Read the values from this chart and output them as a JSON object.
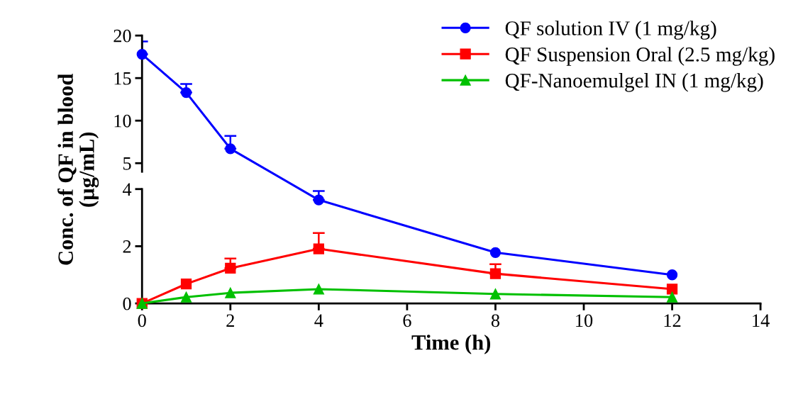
{
  "chart_data": [
    {
      "type": "line",
      "x": [
        0,
        1,
        2
      ],
      "xlim": [
        0,
        14
      ],
      "xticks": [
        0,
        2,
        4,
        6,
        8,
        10,
        12,
        14
      ],
      "ylim": [
        4,
        20
      ],
      "yticks": [
        5,
        10,
        15,
        20
      ],
      "tick_labels": "y",
      "legend": "top right",
      "series": [
        {
          "name": "QF solution IV (1 mg/kg)",
          "color": "#0000ff",
          "marker": "circle",
          "values": [
            17.8,
            13.3,
            6.7
          ],
          "errors": [
            [
              17.8,
              19.3
            ],
            [
              13.3,
              14.3
            ],
            [
              6.7,
              8.2
            ]
          ]
        }
      ]
    },
    {
      "type": "line",
      "x": [
        0,
        1,
        2,
        4,
        8,
        12
      ],
      "xlim": [
        0,
        14
      ],
      "xticks": [
        0,
        2,
        4,
        6,
        8,
        10,
        12,
        14
      ],
      "ylim": [
        0,
        4
      ],
      "yticks": [
        0,
        2,
        4
      ],
      "xlabel": "Time (h)",
      "legend": "top right",
      "ylabel": "Conc. of QF in blood\n(µg/mL)",
      "series": [
        {
          "color": "#0000ff",
          "marker": "circle",
          "x": [
            4,
            8,
            12
          ],
          "values": [
            3.62,
            1.78,
            1.0
          ],
          "errors": [
            [
              3.62,
              3.93
            ],
            null,
            null
          ]
        },
        {
          "name": "QF Suspension Oral (2.5 mg/kg)",
          "color": "#ff0000",
          "marker": "square",
          "values": [
            0.0,
            0.68,
            1.23,
            1.91,
            1.04,
            0.5
          ],
          "errors": [
            null,
            null,
            [
              1.23,
              1.57
            ],
            [
              1.91,
              2.46
            ],
            [
              1.04,
              1.37
            ],
            null
          ]
        },
        {
          "name": "QF-Nanoemulgel IN (1 mg/kg)",
          "color": "#00c000",
          "marker": "triangle",
          "values": [
            0.0,
            0.22,
            0.37,
            0.5,
            0.33,
            0.22
          ]
        }
      ]
    }
  ]
}
